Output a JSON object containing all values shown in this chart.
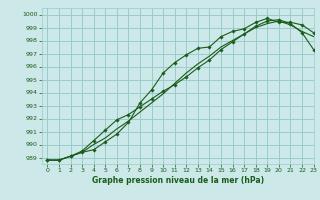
{
  "xlabel": "Graphe pression niveau de la mer (hPa)",
  "bg_color": "#cce8e8",
  "grid_color": "#99cccc",
  "line_color": "#1a5c1a",
  "marker_color": "#1a5c1a",
  "ylim": [
    988.5,
    1000.5
  ],
  "xlim": [
    -0.5,
    23
  ],
  "yticks": [
    989,
    990,
    991,
    992,
    993,
    994,
    995,
    996,
    997,
    998,
    999,
    1000
  ],
  "xticks": [
    0,
    1,
    2,
    3,
    4,
    5,
    6,
    7,
    8,
    9,
    10,
    11,
    12,
    13,
    14,
    15,
    16,
    17,
    18,
    19,
    20,
    21,
    22,
    23
  ],
  "line1_x": [
    0,
    1,
    2,
    3,
    4,
    5,
    6,
    7,
    8,
    9,
    10,
    11,
    12,
    13,
    14,
    15,
    16,
    17,
    18,
    19,
    20,
    21,
    22,
    23
  ],
  "line1_y": [
    988.8,
    988.8,
    989.1,
    989.4,
    989.6,
    990.2,
    990.8,
    991.7,
    993.2,
    994.2,
    995.5,
    996.3,
    996.9,
    997.4,
    997.5,
    998.3,
    998.7,
    998.9,
    999.4,
    999.7,
    999.4,
    999.4,
    999.2,
    998.6
  ],
  "line2_x": [
    0,
    1,
    2,
    3,
    4,
    5,
    6,
    7,
    8,
    9,
    10,
    11,
    12,
    13,
    14,
    15,
    16,
    17,
    18,
    19,
    20,
    21,
    22,
    23
  ],
  "line2_y": [
    988.8,
    988.8,
    989.1,
    989.5,
    990.3,
    991.1,
    991.9,
    992.3,
    992.9,
    993.5,
    994.1,
    994.6,
    995.2,
    995.9,
    996.5,
    997.3,
    997.9,
    998.5,
    999.1,
    999.5,
    999.6,
    999.3,
    998.6,
    997.3
  ],
  "line3_x": [
    0,
    1,
    2,
    3,
    4,
    5,
    6,
    7,
    8,
    9,
    10,
    11,
    12,
    13,
    14,
    15,
    16,
    17,
    18,
    19,
    20,
    21,
    22,
    23
  ],
  "line3_y": [
    988.8,
    988.8,
    989.1,
    989.4,
    990.0,
    990.5,
    991.2,
    991.8,
    992.5,
    993.2,
    993.9,
    994.7,
    995.5,
    996.2,
    996.8,
    997.5,
    998.0,
    998.5,
    999.0,
    999.3,
    999.5,
    999.2,
    998.7,
    998.3
  ]
}
